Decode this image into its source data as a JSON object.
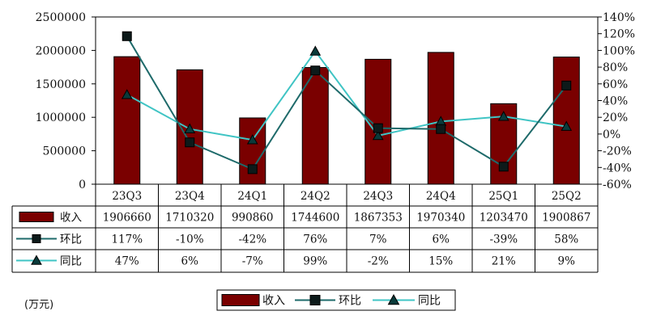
{
  "chart_data": {
    "type": "bar",
    "categories": [
      "23Q3",
      "23Q4",
      "24Q1",
      "24Q2",
      "24Q3",
      "24Q4",
      "25Q1",
      "25Q2"
    ],
    "series": [
      {
        "name": "收入",
        "type": "bar",
        "axis": "left",
        "color": "#7a0000",
        "values": [
          1906660,
          1710320,
          990860,
          1744600,
          1867353,
          1970340,
          1203470,
          1900867
        ],
        "labels": [
          "1906660",
          "1710320",
          "990860",
          "1744600",
          "1867353",
          "1970340",
          "1203470",
          "1900867"
        ]
      },
      {
        "name": "环比",
        "type": "line",
        "axis": "right",
        "color": "#1e6a6a",
        "marker": "square",
        "values": [
          117,
          -10,
          -42,
          76,
          7,
          6,
          -39,
          58
        ],
        "labels": [
          "117%",
          "-10%",
          "-42%",
          "76%",
          "7%",
          "6%",
          "-39%",
          "58%"
        ]
      },
      {
        "name": "同比",
        "type": "line",
        "axis": "right",
        "color": "#3fc4c4",
        "marker": "triangle",
        "values": [
          47,
          6,
          -7,
          99,
          -2,
          15,
          21,
          9
        ],
        "labels": [
          "47%",
          "6%",
          "-7%",
          "99%",
          "-2%",
          "15%",
          "21%",
          "9%"
        ]
      }
    ],
    "y_left": {
      "ylim": [
        0,
        2500000
      ],
      "ticks": [
        "0",
        "500000",
        "1000000",
        "1500000",
        "2000000",
        "2500000"
      ]
    },
    "y_right": {
      "ylim": [
        -60,
        140
      ],
      "ticks": [
        "-60%",
        "-40%",
        "-20%",
        "0%",
        "20%",
        "40%",
        "60%",
        "80%",
        "100%",
        "120%",
        "140%"
      ]
    },
    "unit_label": "(万元)",
    "grid": false,
    "legend_position": "bottom",
    "data_table": true
  }
}
